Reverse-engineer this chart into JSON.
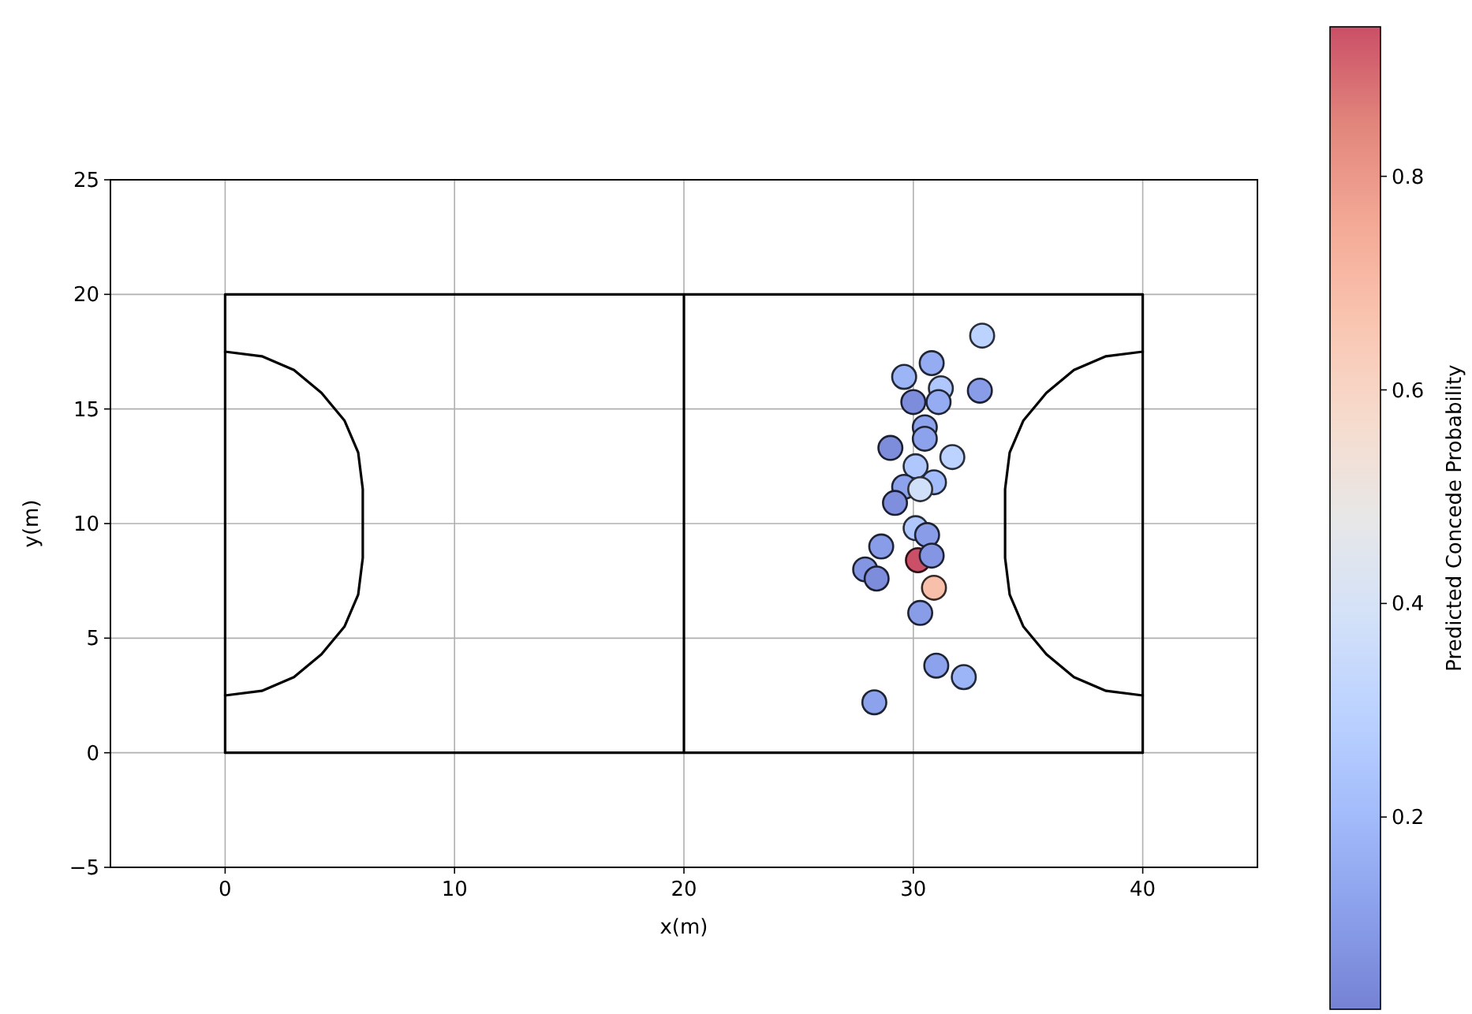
{
  "chart_data": {
    "type": "scatter",
    "xlabel": "x(m)",
    "ylabel": "y(m)",
    "clabel": "Predicted Concede Probability",
    "xlim": [
      -5,
      45
    ],
    "ylim": [
      -5,
      25
    ],
    "xticks": [
      0,
      10,
      20,
      30,
      40
    ],
    "yticks": [
      {
        "value": -5,
        "label": "−5"
      },
      0,
      5,
      10,
      15,
      20,
      25
    ],
    "clim": [
      0.02,
      0.94
    ],
    "cticks": [
      0.2,
      0.4,
      0.6,
      0.8
    ],
    "grid": true,
    "series": [
      {
        "type": "line",
        "color": "#000000",
        "x": [
          20,
          20,
          0,
          0,
          40,
          40,
          20
        ],
        "values": [
          20,
          0,
          0,
          20,
          20,
          0,
          0
        ]
      },
      {
        "type": "line",
        "color": "#000000",
        "x": [
          0,
          1.6,
          3,
          4.2,
          5.2,
          5.8,
          6,
          6,
          5.8,
          5.2,
          4.2,
          3,
          1.6,
          0
        ],
        "values": [
          17.5,
          17.3,
          16.7,
          15.7,
          14.5,
          13.1,
          11.5,
          8.5,
          6.9,
          5.5,
          4.3,
          3.3,
          2.7,
          2.5
        ]
      },
      {
        "type": "line",
        "color": "#000000",
        "x": [
          40,
          38.4,
          37,
          35.8,
          34.8,
          34.2,
          34,
          34,
          34.2,
          34.8,
          35.8,
          37,
          38.4,
          40
        ],
        "values": [
          17.5,
          17.3,
          16.7,
          15.7,
          14.5,
          13.1,
          11.5,
          8.5,
          6.9,
          5.5,
          4.3,
          3.3,
          2.7,
          2.5
        ]
      },
      {
        "type": "scatter",
        "marker": "circle",
        "x": [
          33.0,
          30.8,
          29.6,
          31.2,
          32.9,
          31.1,
          30.0,
          30.5,
          30.5,
          29.0,
          31.7,
          30.1,
          30.9,
          29.6,
          30.3,
          29.2,
          30.1,
          30.6,
          28.6,
          30.2,
          30.8,
          27.9,
          28.4,
          30.9,
          30.3,
          31.0,
          32.2,
          28.3
        ],
        "values": [
          18.2,
          17.0,
          16.4,
          15.9,
          15.8,
          15.3,
          15.3,
          14.2,
          13.7,
          13.3,
          12.9,
          12.5,
          11.8,
          11.6,
          11.5,
          10.9,
          9.8,
          9.5,
          9.0,
          8.4,
          8.6,
          8.0,
          7.6,
          7.2,
          6.1,
          3.8,
          3.3,
          2.2
        ],
        "cvalues": [
          0.3,
          0.15,
          0.18,
          0.25,
          0.1,
          0.15,
          0.05,
          0.12,
          0.12,
          0.05,
          0.3,
          0.25,
          0.2,
          0.12,
          0.38,
          0.06,
          0.25,
          0.1,
          0.1,
          0.94,
          0.08,
          0.08,
          0.05,
          0.68,
          0.1,
          0.12,
          0.18,
          0.12
        ],
        "colors": [
          "#bcd2ff",
          "#95abf2",
          "#9cb5f7",
          "#afc7fd",
          "#889ce8",
          "#95abf2",
          "#7d8cdb",
          "#8da2ed",
          "#8da2ed",
          "#7d8cdb",
          "#bcd2ff",
          "#afc7fd",
          "#a2bbfa",
          "#8da2ed",
          "#d1e0f9",
          "#7f8fde",
          "#afc7fd",
          "#889ce8",
          "#889ce8",
          "#cb4f67",
          "#8495e3",
          "#8495e3",
          "#7d8cdb",
          "#f8c0ab",
          "#889ce8",
          "#8da2ed",
          "#9cb5f7",
          "#8da2ed"
        ]
      }
    ]
  }
}
